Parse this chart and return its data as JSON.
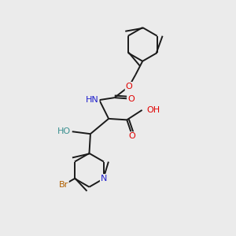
{
  "bg_color": "#ebebeb",
  "bond_color": "#1a1a1a",
  "bond_width": 1.4,
  "atom_colors": {
    "O": "#e00000",
    "N": "#2020cc",
    "Br": "#b06000",
    "HO": "#3a9090",
    "C": "#1a1a1a"
  },
  "font_size": 8.0
}
